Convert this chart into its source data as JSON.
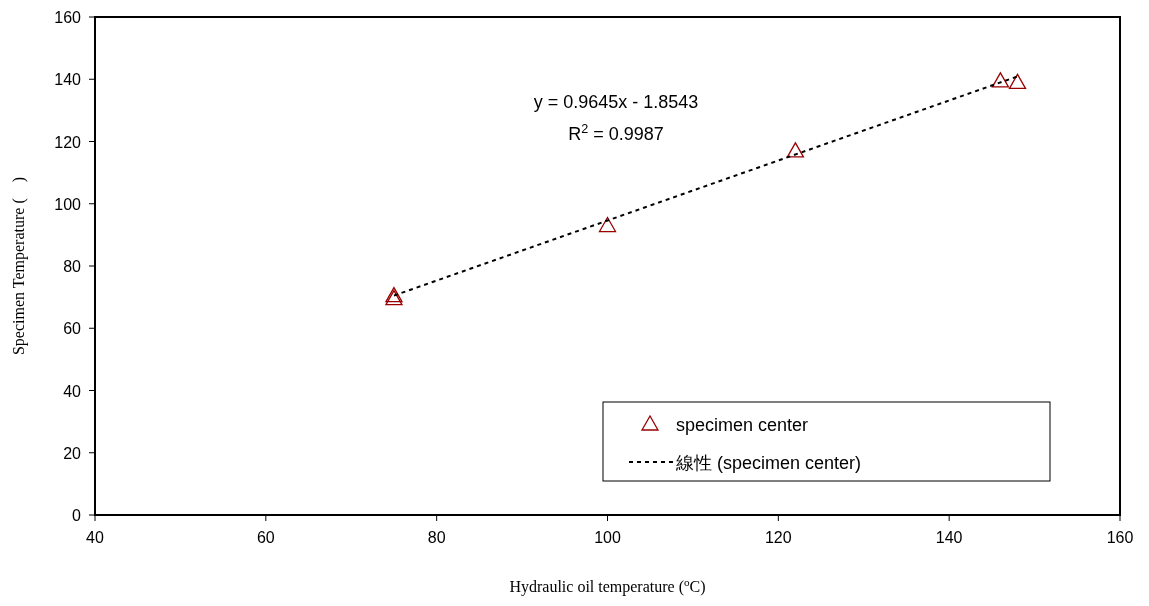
{
  "chart_data": {
    "type": "scatter",
    "xlabel": "Hydraulic oil temperature ($^{o}$C)",
    "ylabel": "Specimen Temperature (    )",
    "xlim": [
      40,
      160
    ],
    "xticks": [
      40,
      60,
      80,
      100,
      120,
      140,
      160
    ],
    "ylim": [
      0,
      160
    ],
    "yticks": [
      0,
      20,
      40,
      60,
      80,
      100,
      120,
      140,
      160
    ],
    "grid": false,
    "legend": "bottom right",
    "marker": "triangle",
    "annotations": [
      {
        "text": "y = 0.9645x - 1.8543"
      },
      {
        "text": "R$^{2}$ = 0.9987"
      }
    ],
    "series": [
      {
        "name": "specimen center",
        "color": "#990000",
        "x": [
          75,
          75,
          100,
          122,
          146,
          148
        ],
        "values": [
          69.5,
          70.5,
          93,
          117,
          139.5,
          139
        ]
      },
      {
        "name": "線性 (specimen center)",
        "type": "line",
        "line_style": "dashed",
        "marker": "none",
        "color": "#000000",
        "x": [
          75,
          148
        ],
        "values": [
          70.5,
          140.9
        ]
      }
    ]
  }
}
